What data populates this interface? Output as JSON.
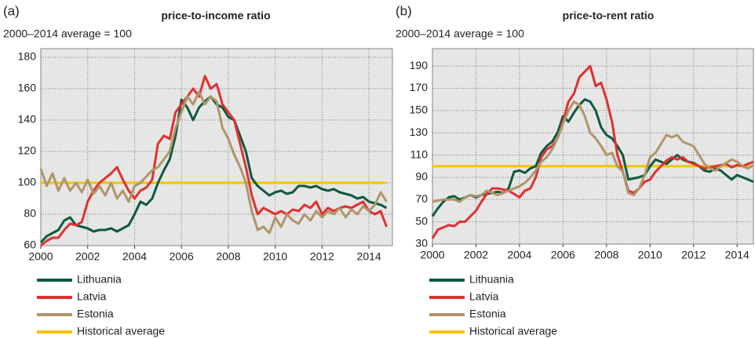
{
  "chart_data": [
    {
      "type": "line",
      "panel": "(a)",
      "title": "price-to-income ratio",
      "subtitle": "2000–2014 average = 100",
      "x": [
        2000,
        2000.25,
        2000.5,
        2000.75,
        2001,
        2001.25,
        2001.5,
        2001.75,
        2002,
        2002.25,
        2002.5,
        2002.75,
        2003,
        2003.25,
        2003.5,
        2003.75,
        2004,
        2004.25,
        2004.5,
        2004.75,
        2005,
        2005.25,
        2005.5,
        2005.75,
        2006,
        2006.25,
        2006.5,
        2006.75,
        2007,
        2007.25,
        2007.5,
        2007.75,
        2008,
        2008.25,
        2008.5,
        2008.75,
        2009,
        2009.25,
        2009.5,
        2009.75,
        2010,
        2010.25,
        2010.5,
        2010.75,
        2011,
        2011.25,
        2011.5,
        2011.75,
        2012,
        2012.25,
        2012.5,
        2012.75,
        2013,
        2013.25,
        2013.5,
        2013.75,
        2014,
        2014.25,
        2014.5,
        2014.75
      ],
      "xlim": [
        2000,
        2015
      ],
      "xticks": [
        2000,
        2002,
        2004,
        2006,
        2008,
        2010,
        2012,
        2014
      ],
      "ylim": [
        60,
        180
      ],
      "yticks": [
        60,
        80,
        100,
        120,
        140,
        160,
        180
      ],
      "grid": true,
      "series": [
        {
          "name": "Lithuania",
          "color": "#0d5a3f",
          "values": [
            62,
            66,
            68,
            70,
            76,
            78,
            73,
            72,
            71,
            69,
            70,
            70,
            71,
            69,
            71,
            73,
            80,
            88,
            86,
            90,
            100,
            108,
            115,
            130,
            153,
            148,
            140,
            148,
            152,
            155,
            150,
            148,
            142,
            140,
            130,
            120,
            103,
            98,
            95,
            92,
            94,
            95,
            93,
            94,
            98,
            98,
            97,
            98,
            96,
            95,
            96,
            94,
            93,
            92,
            90,
            91,
            88,
            87,
            86,
            84
          ]
        },
        {
          "name": "Latvia",
          "color": "#e03030",
          "values": [
            60,
            63,
            65,
            65,
            70,
            74,
            73,
            75,
            88,
            95,
            100,
            103,
            106,
            110,
            102,
            95,
            90,
            95,
            97,
            102,
            125,
            130,
            128,
            145,
            150,
            155,
            160,
            155,
            168,
            160,
            163,
            150,
            145,
            140,
            125,
            110,
            92,
            80,
            84,
            82,
            80,
            82,
            80,
            83,
            82,
            86,
            84,
            88,
            80,
            84,
            82,
            84,
            85,
            84,
            86,
            88,
            82,
            80,
            82,
            72
          ]
        },
        {
          "name": "Estonia",
          "color": "#b0956a",
          "values": [
            109,
            98,
            106,
            95,
            103,
            95,
            100,
            94,
            102,
            93,
            98,
            92,
            100,
            90,
            95,
            88,
            98,
            100,
            104,
            108,
            110,
            115,
            120,
            135,
            145,
            155,
            150,
            158,
            150,
            155,
            152,
            135,
            128,
            118,
            110,
            100,
            82,
            70,
            72,
            68,
            78,
            72,
            80,
            76,
            74,
            80,
            76,
            82,
            78,
            82,
            80,
            84,
            78,
            83,
            80,
            85,
            82,
            86,
            94,
            88
          ]
        },
        {
          "name": "Historical average",
          "color": "#f5c400",
          "values": [
            100,
            100,
            100,
            100,
            100,
            100,
            100,
            100,
            100,
            100,
            100,
            100,
            100,
            100,
            100,
            100,
            100,
            100,
            100,
            100,
            100,
            100,
            100,
            100,
            100,
            100,
            100,
            100,
            100,
            100,
            100,
            100,
            100,
            100,
            100,
            100,
            100,
            100,
            100,
            100,
            100,
            100,
            100,
            100,
            100,
            100,
            100,
            100,
            100,
            100,
            100,
            100,
            100,
            100,
            100,
            100,
            100,
            100,
            100,
            100
          ]
        }
      ]
    },
    {
      "type": "line",
      "panel": "(b)",
      "title": "price-to-rent ratio",
      "subtitle": "2000–2014 average = 100",
      "x": [
        2000,
        2000.25,
        2000.5,
        2000.75,
        2001,
        2001.25,
        2001.5,
        2001.75,
        2002,
        2002.25,
        2002.5,
        2002.75,
        2003,
        2003.25,
        2003.5,
        2003.75,
        2004,
        2004.25,
        2004.5,
        2004.75,
        2005,
        2005.25,
        2005.5,
        2005.75,
        2006,
        2006.25,
        2006.5,
        2006.75,
        2007,
        2007.25,
        2007.5,
        2007.75,
        2008,
        2008.25,
        2008.5,
        2008.75,
        2009,
        2009.25,
        2009.5,
        2009.75,
        2010,
        2010.25,
        2010.5,
        2010.75,
        2011,
        2011.25,
        2011.5,
        2011.75,
        2012,
        2012.25,
        2012.5,
        2012.75,
        2013,
        2013.25,
        2013.5,
        2013.75,
        2014,
        2014.25,
        2014.5,
        2014.75
      ],
      "xlim": [
        2000,
        2014.75
      ],
      "xticks": [
        2000,
        2002,
        2004,
        2006,
        2008,
        2010,
        2012,
        2014
      ],
      "ylim": [
        30,
        200
      ],
      "yticks": [
        30,
        50,
        70,
        90,
        110,
        130,
        150,
        170,
        190
      ],
      "grid": true,
      "series": [
        {
          "name": "Lithuania",
          "color": "#0d5a3f",
          "values": [
            55,
            62,
            68,
            72,
            73,
            70,
            72,
            74,
            72,
            74,
            75,
            76,
            77,
            76,
            80,
            95,
            96,
            94,
            98,
            100,
            112,
            118,
            122,
            130,
            145,
            140,
            148,
            155,
            160,
            158,
            150,
            135,
            128,
            125,
            118,
            110,
            88,
            89,
            90,
            92,
            100,
            106,
            104,
            102,
            106,
            110,
            106,
            104,
            103,
            100,
            96,
            95,
            98,
            96,
            92,
            88,
            92,
            90,
            88,
            86
          ]
        },
        {
          "name": "Latvia",
          "color": "#e03030",
          "values": [
            35,
            43,
            45,
            47,
            46,
            50,
            50,
            55,
            60,
            68,
            75,
            80,
            80,
            79,
            78,
            75,
            72,
            78,
            80,
            90,
            108,
            115,
            118,
            125,
            140,
            158,
            165,
            180,
            185,
            190,
            172,
            175,
            160,
            140,
            110,
            95,
            78,
            76,
            80,
            86,
            88,
            95,
            100,
            105,
            108,
            106,
            108,
            104,
            102,
            100,
            98,
            99,
            100,
            101,
            102,
            99,
            101,
            100,
            102,
            104
          ]
        },
        {
          "name": "Estonia",
          "color": "#b0956a",
          "values": [
            68,
            69,
            70,
            70,
            70,
            68,
            72,
            74,
            73,
            74,
            78,
            76,
            74,
            76,
            78,
            80,
            82,
            85,
            90,
            96,
            104,
            108,
            115,
            125,
            138,
            150,
            158,
            155,
            145,
            130,
            125,
            118,
            110,
            112,
            100,
            95,
            76,
            74,
            80,
            92,
            108,
            112,
            120,
            128,
            126,
            128,
            122,
            120,
            118,
            110,
            102,
            98,
            96,
            100,
            103,
            106,
            104,
            100,
            98,
            101
          ]
        },
        {
          "name": "Historical average",
          "color": "#f5c400",
          "values": [
            100,
            100,
            100,
            100,
            100,
            100,
            100,
            100,
            100,
            100,
            100,
            100,
            100,
            100,
            100,
            100,
            100,
            100,
            100,
            100,
            100,
            100,
            100,
            100,
            100,
            100,
            100,
            100,
            100,
            100,
            100,
            100,
            100,
            100,
            100,
            100,
            100,
            100,
            100,
            100,
            100,
            100,
            100,
            100,
            100,
            100,
            100,
            100,
            100,
            100,
            100,
            100,
            100,
            100,
            100,
            100,
            100,
            100,
            100,
            100
          ]
        }
      ]
    }
  ]
}
